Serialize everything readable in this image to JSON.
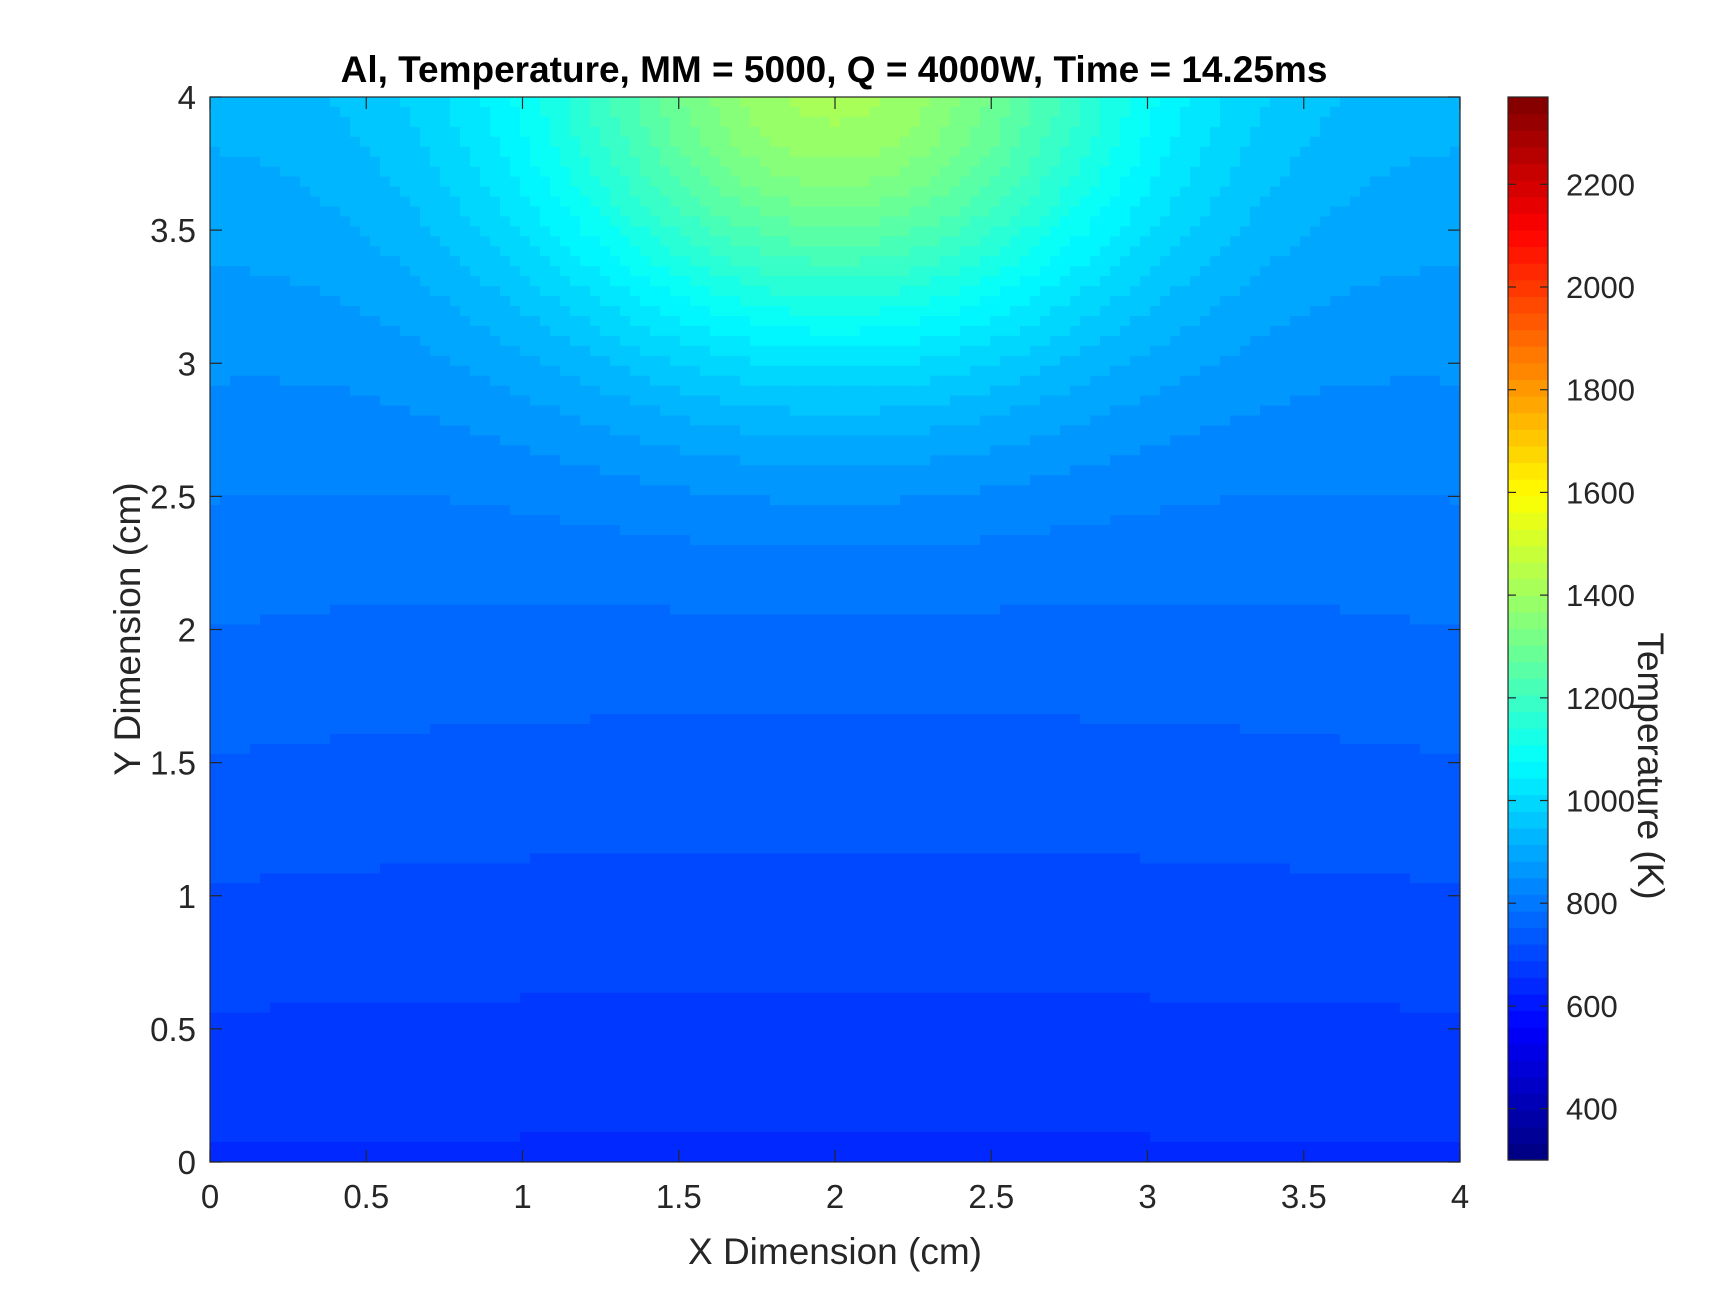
{
  "chart_data": {
    "type": "heatmap",
    "title": "Al, Temperature, MM = 5000, Q = 4000W, Time = 14.25ms",
    "xlabel": "X Dimension (cm)",
    "ylabel": "Y Dimension (cm)",
    "xlim": [
      0,
      4
    ],
    "ylim": [
      0,
      4
    ],
    "x_ticks": [
      "0",
      "0.5",
      "1",
      "1.5",
      "2",
      "2.5",
      "3",
      "3.5",
      "4"
    ],
    "y_ticks": [
      "0",
      "0.5",
      "1",
      "1.5",
      "2",
      "2.5",
      "3",
      "3.5",
      "4"
    ],
    "colormap": "jet",
    "grid": false,
    "colorbar": {
      "label": "Temperature (K)",
      "range": [
        300,
        2370
      ],
      "ticks": [
        "400",
        "600",
        "800",
        "1000",
        "1200",
        "1400",
        "1600",
        "1800",
        "2000",
        "2200"
      ],
      "levels": 64,
      "placement": "right"
    },
    "heat_source": {
      "x": 2,
      "y": 4,
      "peak_temperature": 1200
    },
    "field_estimates": [
      {
        "x": 2,
        "y": 4,
        "temperature": 1200
      },
      {
        "x": 2,
        "y": 3.6,
        "temperature": 1000
      },
      {
        "x": 2,
        "y": 3,
        "temperature": 900
      },
      {
        "x": 2,
        "y": 2,
        "temperature": 800
      },
      {
        "x": 2,
        "y": 1,
        "temperature": 700
      },
      {
        "x": 2,
        "y": 0,
        "temperature": 660
      },
      {
        "x": 0,
        "y": 4,
        "temperature": 880
      },
      {
        "x": 0,
        "y": 2,
        "temperature": 780
      },
      {
        "x": 0,
        "y": 0,
        "temperature": 640
      }
    ]
  }
}
